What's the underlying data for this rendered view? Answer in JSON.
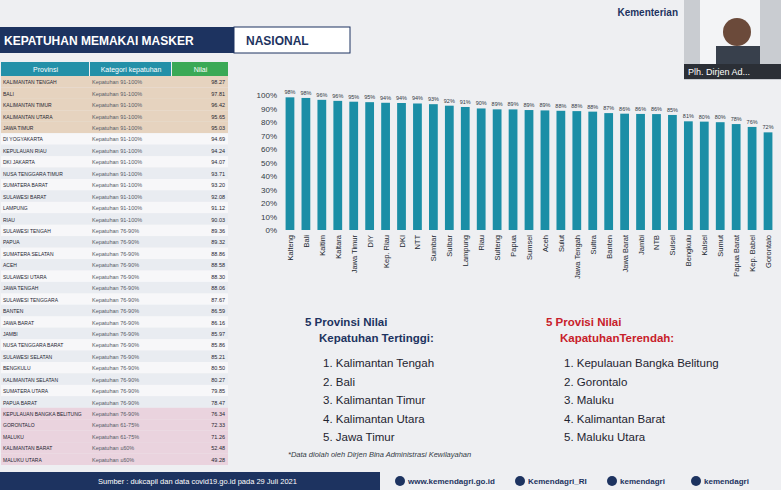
{
  "header": {
    "title": "KEPATUHAN MEMAKAI MASKER",
    "scope": "NASIONAL",
    "ministry": "Kementerian",
    "speaker": "Plh. Dirjen Ad..."
  },
  "table": {
    "columns": [
      "Provinsi",
      "Kategori kepatuhan",
      "Nilai"
    ],
    "rows": [
      [
        "KALIMANTAN TENGAH",
        "Kepatuhan 91-100%",
        "98.27"
      ],
      [
        "BALI",
        "Kepatuhan 91-100%",
        "97.81"
      ],
      [
        "KALIMANTAN TIMUR",
        "Kepatuhan 91-100%",
        "96.42"
      ],
      [
        "KALIMANTAN UTARA",
        "Kepatuhan 91-100%",
        "95.65"
      ],
      [
        "JAWA TIMUR",
        "Kepatuhan 91-100%",
        "95.03"
      ],
      [
        "DI YOGYAKARTA",
        "Kepatuhan 91-100%",
        "94.69"
      ],
      [
        "KEPULAUAN RIAU",
        "Kepatuhan 91-100%",
        "94.24"
      ],
      [
        "DKI JAKARTA",
        "Kepatuhan 91-100%",
        "94.07"
      ],
      [
        "NUSA TENGGARA TIMUR",
        "Kepatuhan 91-100%",
        "93.71"
      ],
      [
        "SUMATERA BARAT",
        "Kepatuhan 91-100%",
        "93.20"
      ],
      [
        "SULAWESI BARAT",
        "Kepatuhan 91-100%",
        "92.08"
      ],
      [
        "LAMPUNG",
        "Kepatuhan 91-100%",
        "91.12"
      ],
      [
        "RIAU",
        "Kepatuhan 91-100%",
        "90.03"
      ],
      [
        "SULAWESI TENGAH",
        "Kepatuhan 76-90%",
        "89.36"
      ],
      [
        "PAPUA",
        "Kepatuhan 76-90%",
        "89.32"
      ],
      [
        "SUMATERA SELATAN",
        "Kepatuhan 76-90%",
        "88.86"
      ],
      [
        "ACEH",
        "Kepatuhan 76-90%",
        "88.58"
      ],
      [
        "SULAWESI UTARA",
        "Kepatuhan 76-90%",
        "88.30"
      ],
      [
        "JAWA TENGAH",
        "Kepatuhan 76-90%",
        "88.06"
      ],
      [
        "SULAWESI TENGGARA",
        "Kepatuhan 76-90%",
        "87.67"
      ],
      [
        "BANTEN",
        "Kepatuhan 76-90%",
        "86.59"
      ],
      [
        "JAWA BARAT",
        "Kepatuhan 76-90%",
        "86.16"
      ],
      [
        "JAMBI",
        "Kepatuhan 76-90%",
        "85.97"
      ],
      [
        "NUSA TENGGARA BARAT",
        "Kepatuhan 76-90%",
        "85.86"
      ],
      [
        "SULAWESI SELATAN",
        "Kepatuhan 76-90%",
        "85.21"
      ],
      [
        "BENGKULU",
        "Kepatuhan 76-90%",
        "80.50"
      ],
      [
        "KALIMANTAN SELATAN",
        "Kepatuhan 76-90%",
        "80.27"
      ],
      [
        "SUMATERA UTARA",
        "Kepatuhan 76-90%",
        "79.85"
      ],
      [
        "PAPUA BARAT",
        "Kepatuhan 76-90%",
        "78.47"
      ],
      [
        "KEPULAUAN BANGKA BELITUNG",
        "Kepatuhan 76-90%",
        "76.34"
      ],
      [
        "GORONTALO",
        "Kepatuhan 61-75%",
        "72.33"
      ],
      [
        "MALUKU",
        "Kepatuhan 61-75%",
        "71.26"
      ],
      [
        "KALIMANTAN BARAT",
        "Kepatuhan ≤60%",
        "52.48"
      ],
      [
        "MALUKU UTARA",
        "Kepatuhan ≤60%",
        "49.28"
      ]
    ]
  },
  "chart_data": {
    "type": "bar",
    "categories": [
      "Kalteng",
      "Bali",
      "Kaltim",
      "Kaltara",
      "Jawa Timur",
      "DIY",
      "Kep. Riau",
      "DKI",
      "NTT",
      "Sumbar",
      "Sulbar",
      "Lampung",
      "Riau",
      "Sulteng",
      "Papua",
      "Sumsel",
      "Aceh",
      "Sulut",
      "Jawa Tengah",
      "Sultra",
      "Banten",
      "Jawa Barat",
      "Jambi",
      "NTB",
      "Sulsel",
      "Bengkulu",
      "Kalsel",
      "Sumut",
      "Papua Barat",
      "Kep. Babel",
      "Gorontalo"
    ],
    "values": [
      98.27,
      97.81,
      96.42,
      95.65,
      95.03,
      94.69,
      94.24,
      94.07,
      93.71,
      93.2,
      92.08,
      91.12,
      90.03,
      89.36,
      89.32,
      88.86,
      88.58,
      88.3,
      88.06,
      87.67,
      86.59,
      86.16,
      85.97,
      85.86,
      85.21,
      80.5,
      80.27,
      79.85,
      78.47,
      76.34,
      72.33
    ],
    "value_labels": [
      "98%",
      "98%",
      "96%",
      "96%",
      "95%",
      "95%",
      "94%",
      "94%",
      "94%",
      "93%",
      "92%",
      "91%",
      "90%",
      "89%",
      "89%",
      "89%",
      "89%",
      "88%",
      "88%",
      "88%",
      "87%",
      "86%",
      "86%",
      "86%",
      "85%",
      "81%",
      "80%",
      "80%",
      "78%",
      "76%",
      "72%"
    ],
    "color": "#1b8ea6",
    "ylim": [
      0,
      100
    ],
    "yticks": [
      {
        "value": 0,
        "label": "0%"
      },
      {
        "value": 10,
        "label": "10%"
      },
      {
        "value": 20,
        "label": "20%"
      },
      {
        "value": 30,
        "label": "30%"
      },
      {
        "value": 40,
        "label": "40%"
      },
      {
        "value": 50,
        "label": "50%"
      },
      {
        "value": 60,
        "label": "60%"
      },
      {
        "value": 70,
        "label": "70%"
      },
      {
        "value": 80,
        "label": "80%"
      },
      {
        "value": 90,
        "label": "90%"
      },
      {
        "value": 100,
        "label": "100%"
      }
    ],
    "grid": false,
    "data_labels": true
  },
  "highest": {
    "title_lines": [
      "5 Provinsi Nilai",
      "Kepatuhan Tertinggi:"
    ],
    "items": [
      "1. Kalimantan Tengah",
      "2. Bali",
      "3. Kalimantan Timur",
      "4. Kalimantan Utara",
      "5. Jawa Timur"
    ]
  },
  "lowest": {
    "title_lines": [
      "5 Provisi Nilai",
      "KapatuhanTerendah:"
    ],
    "items": [
      "1. Kepulauan Bangka Belitung",
      "2. Gorontalo",
      "3. Maluku",
      "4. Kalimantan Barat",
      "5. Maluku Utara"
    ]
  },
  "note": "*Data diolah oleh Dirjen Bina Administrasi Kewilayahan",
  "footer": {
    "source": "Sumber : dukcapil dan data covid19.go.id pada 29 Juli 2021",
    "links": [
      "www.kemendagri.go.id",
      "Kemendagri_RI",
      "kemendagri",
      "kemendagri"
    ]
  }
}
